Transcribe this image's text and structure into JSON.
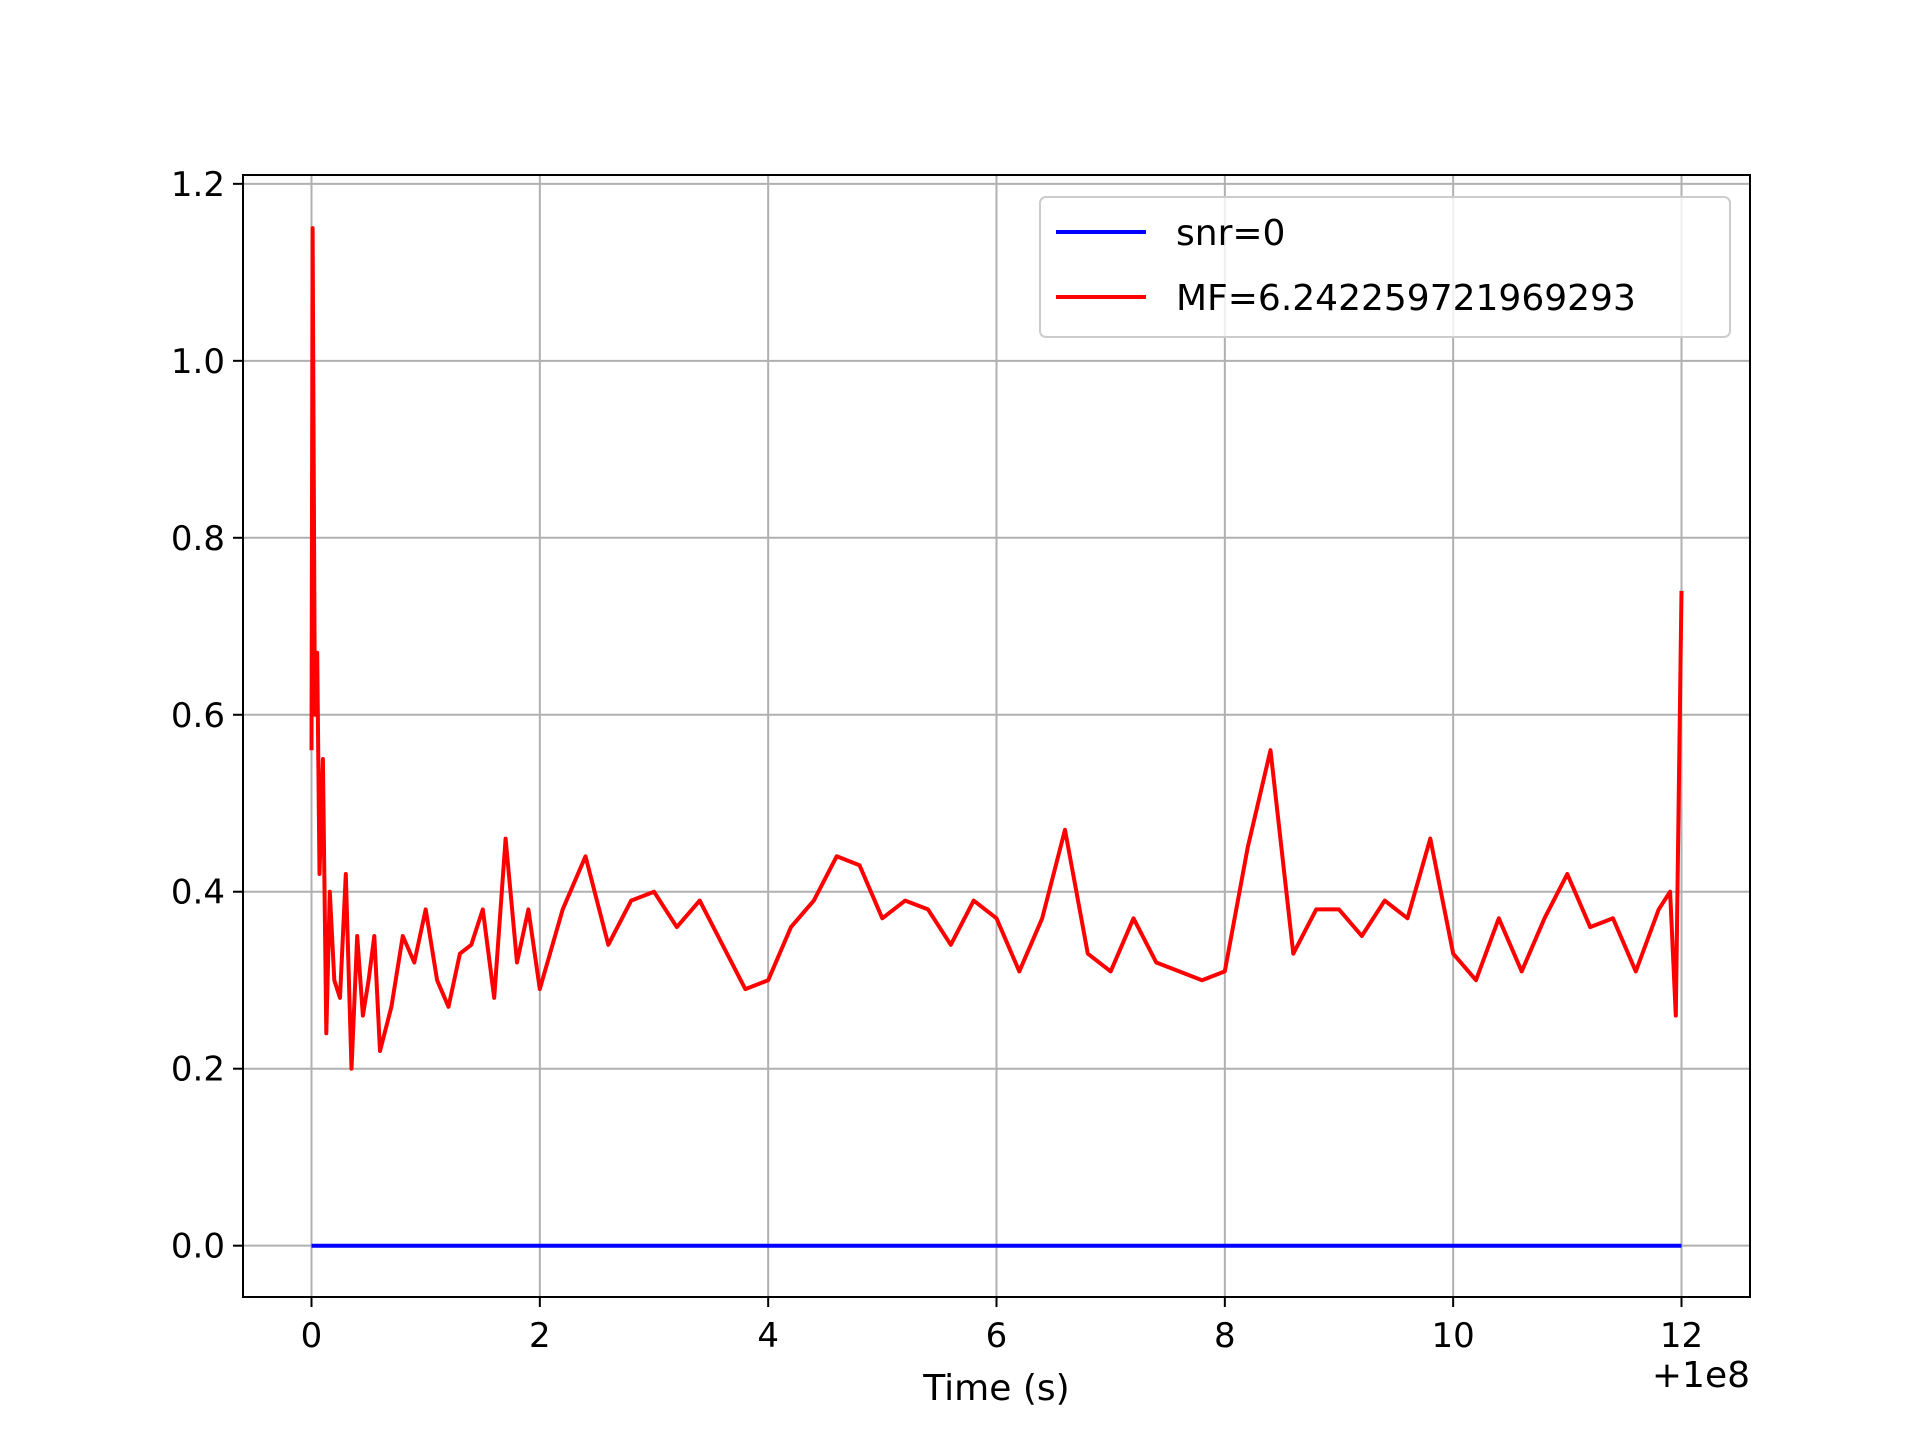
{
  "chart_data": {
    "type": "line",
    "title": "",
    "xlabel": "Time (s)",
    "ylabel": "",
    "x_offset_label": "+1e8",
    "xlim": [
      -0.6,
      12.6
    ],
    "ylim": [
      -0.058,
      1.21
    ],
    "x_ticks": [
      0,
      2,
      4,
      6,
      8,
      10,
      12
    ],
    "y_ticks": [
      0.0,
      0.2,
      0.4,
      0.6,
      0.8,
      1.0,
      1.2
    ],
    "x_tick_labels": [
      "0",
      "2",
      "4",
      "6",
      "8",
      "10",
      "12"
    ],
    "y_tick_labels": [
      "0.0",
      "0.2",
      "0.4",
      "0.6",
      "0.8",
      "1.0",
      "1.2"
    ],
    "grid": true,
    "legend_position": "top-right",
    "series": [
      {
        "name": "snr=0",
        "color": "#0000ff",
        "x": [
          0,
          12
        ],
        "y": [
          0,
          0
        ]
      },
      {
        "name": "MF=6.242259721969293",
        "color": "#ff0000",
        "x": [
          0.0,
          0.01,
          0.03,
          0.05,
          0.07,
          0.1,
          0.13,
          0.16,
          0.2,
          0.25,
          0.3,
          0.35,
          0.4,
          0.45,
          0.5,
          0.55,
          0.6,
          0.7,
          0.8,
          0.9,
          1.0,
          1.1,
          1.2,
          1.3,
          1.4,
          1.5,
          1.6,
          1.7,
          1.8,
          1.9,
          2.0,
          2.2,
          2.4,
          2.6,
          2.8,
          3.0,
          3.2,
          3.4,
          3.6,
          3.8,
          4.0,
          4.2,
          4.4,
          4.6,
          4.8,
          5.0,
          5.2,
          5.4,
          5.6,
          5.8,
          6.0,
          6.2,
          6.4,
          6.6,
          6.8,
          7.0,
          7.2,
          7.4,
          7.6,
          7.8,
          8.0,
          8.2,
          8.4,
          8.6,
          8.8,
          9.0,
          9.2,
          9.4,
          9.6,
          9.8,
          10.0,
          10.2,
          10.4,
          10.6,
          10.8,
          11.0,
          11.2,
          11.4,
          11.6,
          11.8,
          11.9,
          11.95,
          12.0
        ],
        "y": [
          0.56,
          1.15,
          0.6,
          0.67,
          0.42,
          0.55,
          0.24,
          0.4,
          0.3,
          0.28,
          0.42,
          0.2,
          0.35,
          0.26,
          0.3,
          0.35,
          0.22,
          0.27,
          0.35,
          0.32,
          0.38,
          0.3,
          0.27,
          0.33,
          0.34,
          0.38,
          0.28,
          0.46,
          0.32,
          0.38,
          0.29,
          0.38,
          0.44,
          0.34,
          0.39,
          0.4,
          0.36,
          0.39,
          0.34,
          0.29,
          0.3,
          0.36,
          0.39,
          0.44,
          0.43,
          0.37,
          0.39,
          0.38,
          0.34,
          0.39,
          0.37,
          0.31,
          0.37,
          0.47,
          0.33,
          0.31,
          0.37,
          0.32,
          0.31,
          0.3,
          0.31,
          0.45,
          0.56,
          0.33,
          0.38,
          0.38,
          0.35,
          0.39,
          0.37,
          0.46,
          0.33,
          0.3,
          0.37,
          0.31,
          0.37,
          0.42,
          0.36,
          0.37,
          0.31,
          0.38,
          0.4,
          0.26,
          0.74
        ]
      }
    ]
  }
}
